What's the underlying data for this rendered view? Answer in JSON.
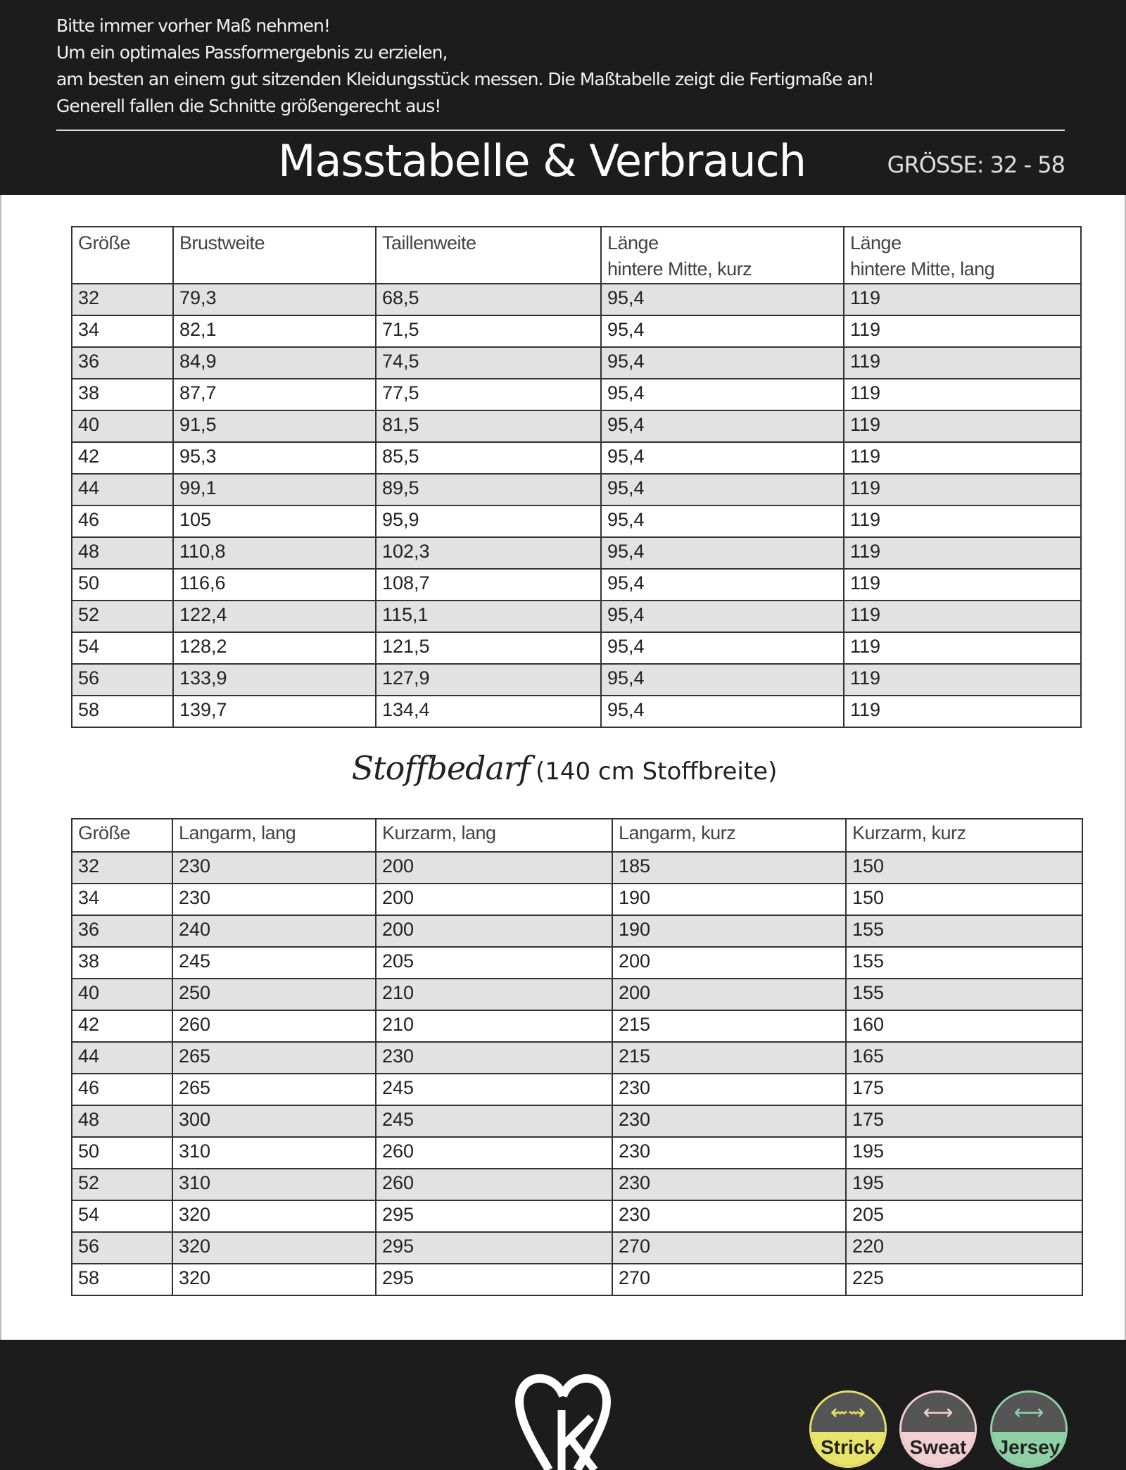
{
  "header": {
    "intro_lines": [
      "Bitte immer vorher Maß nehmen!",
      "Um ein optimales Passformergebnis zu erzielen,",
      "am besten an einem gut sitzenden Kleidungsstück messen. Die Maßtabelle zeigt die Fertigmaße an!",
      "Generell fallen die Schnitte größengerecht aus!"
    ],
    "title": "Masstabelle & Verbrauch",
    "size_range": "GRÖSSE: 32 - 58"
  },
  "measurements": {
    "headers": [
      "Größe",
      "Brustweite",
      "Taillenweite",
      "Länge\nhintere Mitte, kurz",
      "Länge\nhintere Mitte, lang"
    ],
    "rows": [
      [
        "32",
        "79,3",
        "68,5",
        "95,4",
        "119"
      ],
      [
        "34",
        "82,1",
        "71,5",
        "95,4",
        "119"
      ],
      [
        "36",
        "84,9",
        "74,5",
        "95,4",
        "119"
      ],
      [
        "38",
        "87,7",
        "77,5",
        "95,4",
        "119"
      ],
      [
        "40",
        "91,5",
        "81,5",
        "95,4",
        "119"
      ],
      [
        "42",
        "95,3",
        "85,5",
        "95,4",
        "119"
      ],
      [
        "44",
        "99,1",
        "89,5",
        "95,4",
        "119"
      ],
      [
        "46",
        "105",
        "95,9",
        "95,4",
        "119"
      ],
      [
        "48",
        "110,8",
        "102,3",
        "95,4",
        "119"
      ],
      [
        "50",
        "116,6",
        "108,7",
        "95,4",
        "119"
      ],
      [
        "52",
        "122,4",
        "115,1",
        "95,4",
        "119"
      ],
      [
        "54",
        "128,2",
        "121,5",
        "95,4",
        "119"
      ],
      [
        "56",
        "133,9",
        "127,9",
        "95,4",
        "119"
      ],
      [
        "58",
        "139,7",
        "134,4",
        "95,4",
        "119"
      ]
    ]
  },
  "fabric": {
    "heading_script": "Stoffbedarf",
    "heading_note": "(140 cm Stoffbreite)",
    "headers": [
      "Größe",
      "Langarm, lang",
      "Kurzarm, lang",
      "Langarm, kurz",
      "Kurzarm, kurz"
    ],
    "rows": [
      [
        "32",
        "230",
        "200",
        "185",
        "150"
      ],
      [
        "34",
        "230",
        "200",
        "190",
        "150"
      ],
      [
        "36",
        "240",
        "200",
        "190",
        "155"
      ],
      [
        "38",
        "245",
        "205",
        "200",
        "155"
      ],
      [
        "40",
        "250",
        "210",
        "200",
        "155"
      ],
      [
        "42",
        "260",
        "210",
        "215",
        "160"
      ],
      [
        "44",
        "265",
        "230",
        "215",
        "165"
      ],
      [
        "46",
        "265",
        "245",
        "230",
        "175"
      ],
      [
        "48",
        "300",
        "245",
        "230",
        "175"
      ],
      [
        "50",
        "310",
        "260",
        "230",
        "195"
      ],
      [
        "52",
        "310",
        "260",
        "230",
        "195"
      ],
      [
        "54",
        "320",
        "295",
        "230",
        "205"
      ],
      [
        "56",
        "320",
        "295",
        "270",
        "220"
      ],
      [
        "58",
        "320",
        "295",
        "270",
        "225"
      ]
    ]
  },
  "footer": {
    "logo": "heart-k-logo",
    "badges": [
      {
        "label": "Strick",
        "icon": "wavy-arrow-icon",
        "color": "#e8e36a"
      },
      {
        "label": "Sweat",
        "icon": "double-arrow-icon",
        "color": "#f2cfd3"
      },
      {
        "label": "Jersey",
        "icon": "double-arrow-icon",
        "color": "#8fd1a6"
      }
    ]
  }
}
